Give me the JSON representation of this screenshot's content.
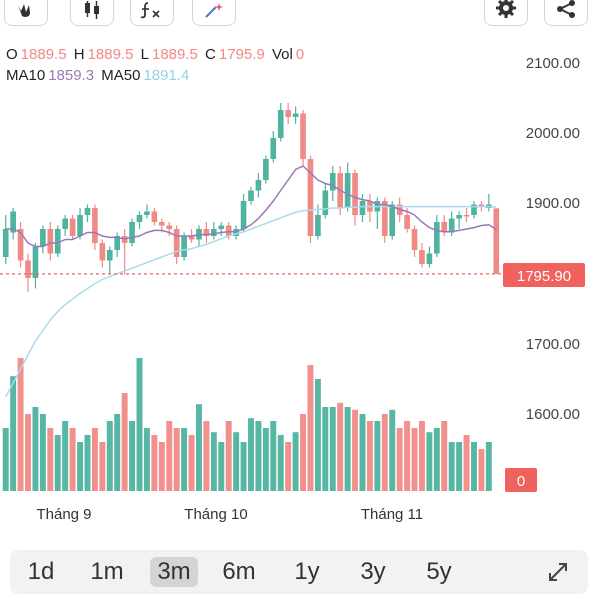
{
  "toolbar": {
    "icons": [
      "hand-draw-icon",
      "candlestick-icon",
      "function-icon",
      "magic-wand-icon",
      "gear-icon",
      "share-icon"
    ]
  },
  "ohlc": {
    "open_label": "O",
    "open": "1889.5",
    "high_label": "H",
    "high": "1889.5",
    "low_label": "L",
    "low": "1889.5",
    "close_label": "C",
    "close": "1795.9",
    "vol_label": "Vol",
    "vol": "0",
    "ma10_label": "MA10",
    "ma10": "1859.3",
    "ma50_label": "MA50",
    "ma50": "1891.4"
  },
  "colors": {
    "up": "#4fb39f",
    "down": "#f08a86",
    "ma10": "#9a78b8",
    "ma50": "#a9dcea",
    "last_price_bg": "#f0625d"
  },
  "price_axis": [
    "2100.00",
    "2000.00",
    "1900.00",
    "1700.00",
    "1600.00"
  ],
  "last_price_label": "1795.90",
  "volume_label": "0",
  "time_axis": [
    "Tháng 9",
    "Tháng 10",
    "Tháng 11"
  ],
  "range_buttons": [
    "1d",
    "1m",
    "3m",
    "6m",
    "1y",
    "3y",
    "5y"
  ],
  "active_range": "3m",
  "chart_data": {
    "type": "candlestick",
    "ylim": [
      1520,
      2120
    ],
    "last_price": 1795.9,
    "candles": [
      [
        1820,
        1860,
        1880,
        1810,
        "up"
      ],
      [
        1855,
        1885,
        1890,
        1845,
        "up"
      ],
      [
        1860,
        1815,
        1870,
        1805,
        "down"
      ],
      [
        1815,
        1790,
        1825,
        1770,
        "down"
      ],
      [
        1790,
        1835,
        1840,
        1775,
        "up"
      ],
      [
        1835,
        1860,
        1865,
        1825,
        "up"
      ],
      [
        1860,
        1825,
        1870,
        1815,
        "down"
      ],
      [
        1825,
        1860,
        1865,
        1820,
        "up"
      ],
      [
        1860,
        1875,
        1880,
        1850,
        "up"
      ],
      [
        1875,
        1850,
        1880,
        1845,
        "down"
      ],
      [
        1850,
        1880,
        1890,
        1845,
        "up"
      ],
      [
        1880,
        1890,
        1895,
        1870,
        "up"
      ],
      [
        1890,
        1840,
        1895,
        1830,
        "down"
      ],
      [
        1840,
        1815,
        1845,
        1805,
        "down"
      ],
      [
        1815,
        1830,
        1835,
        1795,
        "up"
      ],
      [
        1830,
        1850,
        1855,
        1820,
        "up"
      ],
      [
        1850,
        1840,
        1860,
        1795,
        "down"
      ],
      [
        1840,
        1870,
        1875,
        1835,
        "up"
      ],
      [
        1870,
        1880,
        1885,
        1860,
        "up"
      ],
      [
        1880,
        1885,
        1895,
        1875,
        "up"
      ],
      [
        1885,
        1870,
        1890,
        1865,
        "down"
      ],
      [
        1870,
        1865,
        1875,
        1855,
        "down"
      ],
      [
        1865,
        1860,
        1870,
        1850,
        "down"
      ],
      [
        1860,
        1820,
        1865,
        1810,
        "down"
      ],
      [
        1820,
        1850,
        1855,
        1815,
        "up"
      ],
      [
        1850,
        1845,
        1860,
        1840,
        "down"
      ],
      [
        1845,
        1860,
        1865,
        1835,
        "up"
      ],
      [
        1860,
        1850,
        1870,
        1840,
        "down"
      ],
      [
        1850,
        1860,
        1870,
        1845,
        "up"
      ],
      [
        1860,
        1865,
        1870,
        1850,
        "up"
      ],
      [
        1865,
        1850,
        1870,
        1845,
        "down"
      ],
      [
        1850,
        1860,
        1865,
        1845,
        "up"
      ],
      [
        1860,
        1900,
        1910,
        1855,
        "up"
      ],
      [
        1900,
        1915,
        1920,
        1895,
        "up"
      ],
      [
        1915,
        1930,
        1940,
        1905,
        "up"
      ],
      [
        1930,
        1960,
        1965,
        1925,
        "up"
      ],
      [
        1960,
        1990,
        2000,
        1955,
        "up"
      ],
      [
        1990,
        2030,
        2040,
        1985,
        "up"
      ],
      [
        2030,
        2020,
        2040,
        2010,
        "down"
      ],
      [
        2020,
        2025,
        2035,
        2010,
        "up"
      ],
      [
        2025,
        1960,
        2030,
        1950,
        "down"
      ],
      [
        1960,
        1850,
        1965,
        1840,
        "down"
      ],
      [
        1850,
        1880,
        1895,
        1845,
        "up"
      ],
      [
        1880,
        1915,
        1925,
        1875,
        "up"
      ],
      [
        1915,
        1940,
        1950,
        1900,
        "up"
      ],
      [
        1940,
        1890,
        1950,
        1880,
        "down"
      ],
      [
        1890,
        1940,
        1955,
        1885,
        "up"
      ],
      [
        1940,
        1880,
        1945,
        1865,
        "down"
      ],
      [
        1880,
        1900,
        1910,
        1870,
        "up"
      ],
      [
        1900,
        1885,
        1910,
        1870,
        "down"
      ],
      [
        1885,
        1900,
        1905,
        1860,
        "up"
      ],
      [
        1900,
        1850,
        1905,
        1840,
        "down"
      ],
      [
        1850,
        1895,
        1900,
        1845,
        "up"
      ],
      [
        1895,
        1880,
        1905,
        1870,
        "down"
      ],
      [
        1880,
        1860,
        1890,
        1855,
        "down"
      ],
      [
        1860,
        1830,
        1865,
        1820,
        "down"
      ],
      [
        1830,
        1810,
        1840,
        1805,
        "down"
      ],
      [
        1810,
        1825,
        1835,
        1805,
        "up"
      ],
      [
        1825,
        1870,
        1880,
        1820,
        "up"
      ],
      [
        1870,
        1855,
        1880,
        1850,
        "down"
      ],
      [
        1855,
        1875,
        1885,
        1850,
        "up"
      ],
      [
        1875,
        1880,
        1885,
        1860,
        "up"
      ],
      [
        1880,
        1880,
        1890,
        1870,
        "down"
      ],
      [
        1880,
        1895,
        1900,
        1875,
        "up"
      ],
      [
        1895,
        1895,
        1900,
        1885,
        "down"
      ],
      [
        1895,
        1890,
        1910,
        1885,
        "up"
      ],
      [
        1889.5,
        1795.9,
        1889.5,
        1795.9,
        "down"
      ]
    ],
    "volume_relative": [
      0.45,
      0.82,
      0.95,
      0.55,
      0.6,
      0.55,
      0.45,
      0.4,
      0.5,
      0.45,
      0.35,
      0.4,
      0.45,
      0.35,
      0.5,
      0.55,
      0.7,
      0.5,
      0.95,
      0.45,
      0.4,
      0.35,
      0.5,
      0.45,
      0.45,
      0.4,
      0.62,
      0.5,
      0.42,
      0.35,
      0.5,
      0.42,
      0.35,
      0.52,
      0.5,
      0.45,
      0.5,
      0.4,
      0.35,
      0.42,
      0.55,
      0.9,
      0.8,
      0.6,
      0.6,
      0.63,
      0.6,
      0.58,
      0.55,
      0.5,
      0.5,
      0.55,
      0.58,
      0.45,
      0.5,
      0.45,
      0.5,
      0.42,
      0.45,
      0.5,
      0.35,
      0.35,
      0.4,
      0.35,
      0.3,
      0.35,
      0.0
    ],
    "ma10": [
      1860,
      1860,
      1855,
      1840,
      1835,
      1835,
      1840,
      1840,
      1845,
      1845,
      1850,
      1855,
      1855,
      1850,
      1848,
      1848,
      1846,
      1848,
      1850,
      1855,
      1858,
      1858,
      1855,
      1850,
      1850,
      1850,
      1852,
      1852,
      1853,
      1855,
      1856,
      1856,
      1860,
      1866,
      1875,
      1887,
      1900,
      1915,
      1930,
      1945,
      1950,
      1940,
      1930,
      1925,
      1922,
      1915,
      1910,
      1905,
      1902,
      1900,
      1895,
      1895,
      1892,
      1888,
      1885,
      1880,
      1870,
      1862,
      1858,
      1856,
      1856,
      1858,
      1860,
      1862,
      1865,
      1866,
      1859.3
    ],
    "ma50": [
      1620,
      1640,
      1660,
      1680,
      1700,
      1715,
      1730,
      1742,
      1752,
      1760,
      1768,
      1775,
      1782,
      1788,
      1792,
      1796,
      1800,
      1804,
      1808,
      1812,
      1816,
      1820,
      1824,
      1828,
      1830,
      1832,
      1835,
      1838,
      1842,
      1846,
      1850,
      1853,
      1856,
      1860,
      1864,
      1868,
      1872,
      1876,
      1880,
      1884,
      1886,
      1887,
      1888,
      1889,
      1890,
      1890,
      1891,
      1891,
      1892,
      1892,
      1892,
      1892,
      1892,
      1892,
      1892,
      1892,
      1892,
      1892,
      1892,
      1892,
      1892,
      1892,
      1892,
      1892,
      1892,
      1892,
      1891.4
    ]
  }
}
